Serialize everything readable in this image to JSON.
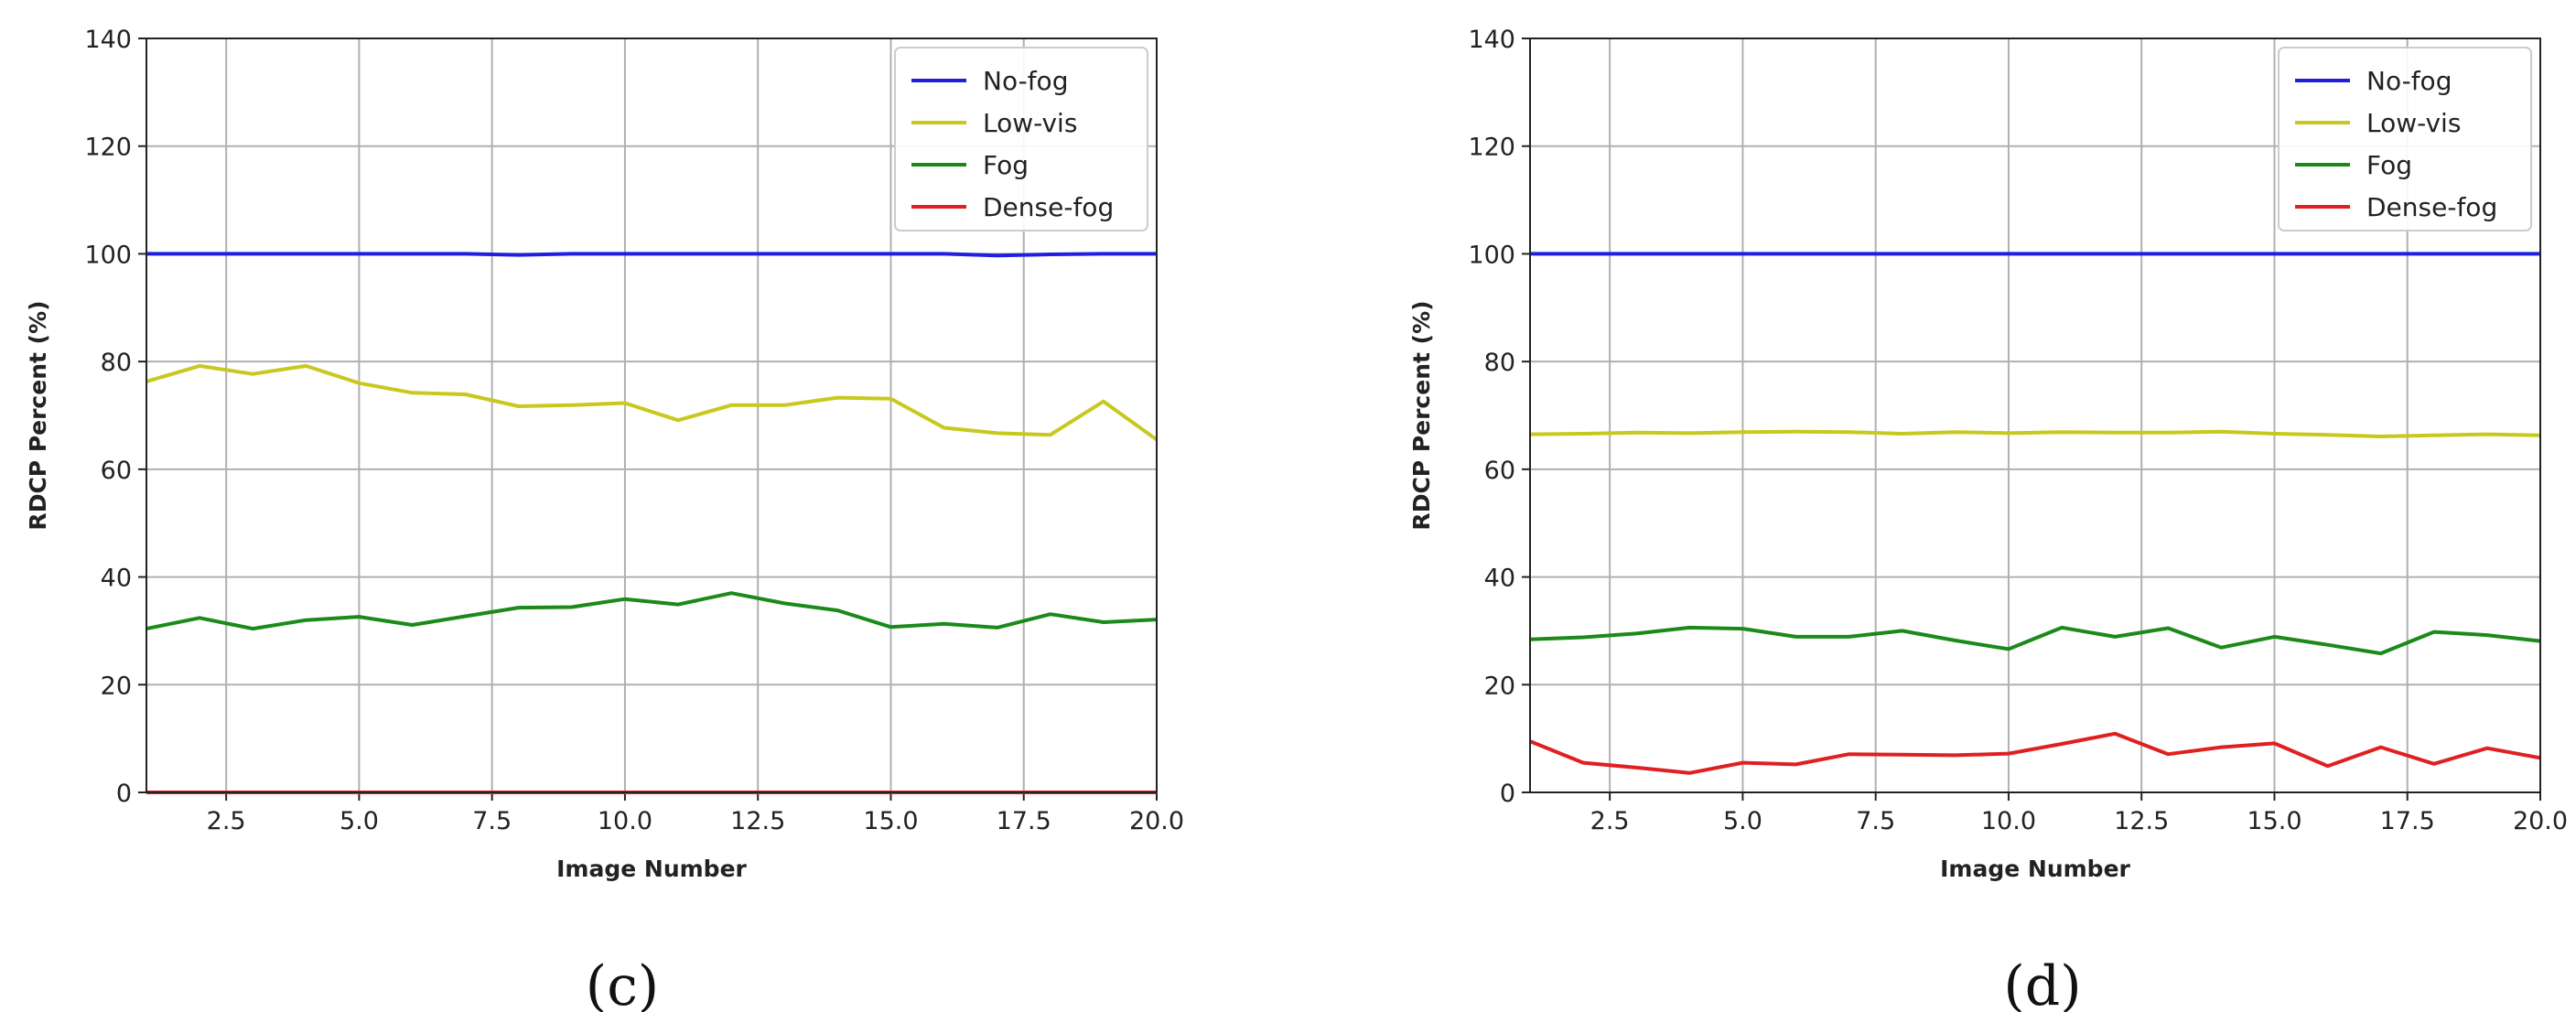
{
  "chart_data": [
    {
      "type": "line",
      "panel_label": "(c)",
      "xlabel": "Image Number",
      "ylabel": "RDCP Percent (%)",
      "xlim": [
        1,
        20
      ],
      "ylim": [
        0,
        140
      ],
      "x_ticks": [
        "2.5",
        "5.0",
        "7.5",
        "10.0",
        "12.5",
        "15.0",
        "17.5",
        "20.0"
      ],
      "y_ticks": [
        "0",
        "20",
        "40",
        "60",
        "80",
        "100",
        "120",
        "140"
      ],
      "grid": true,
      "legend_position": "top-right",
      "x": [
        1,
        2,
        3,
        4,
        5,
        6,
        7,
        8,
        9,
        10,
        11,
        12,
        13,
        14,
        15,
        16,
        17,
        18,
        19,
        20
      ],
      "series": [
        {
          "name": "No-fog",
          "color": "#1f1fe0",
          "values": [
            100,
            100,
            100,
            100,
            100,
            100,
            100,
            99.8,
            100,
            100,
            100,
            100,
            100,
            100,
            100,
            100,
            99.7,
            99.9,
            100,
            100
          ]
        },
        {
          "name": "Low-vis",
          "color": "#c8c81e",
          "values": [
            76.3,
            79.2,
            77.7,
            79.2,
            76.0,
            74.2,
            73.9,
            71.7,
            71.9,
            72.3,
            69.1,
            71.9,
            71.9,
            73.3,
            73.1,
            67.7,
            66.7,
            66.4,
            72.6,
            65.5
          ]
        },
        {
          "name": "Fog",
          "color": "#1a8a1a",
          "values": [
            30.4,
            32.4,
            30.4,
            32.0,
            32.6,
            31.1,
            32.7,
            34.3,
            34.4,
            35.9,
            34.9,
            37.0,
            35.1,
            33.8,
            30.7,
            31.3,
            30.6,
            33.1,
            31.6,
            32.1
          ]
        },
        {
          "name": "Dense-fog",
          "color": "#e02020",
          "values": [
            0,
            0,
            0,
            0,
            0,
            0,
            0,
            0,
            0,
            0,
            0,
            0,
            0,
            0,
            0,
            0,
            0,
            0,
            0,
            0
          ]
        }
      ]
    },
    {
      "type": "line",
      "panel_label": "(d)",
      "xlabel": "Image Number",
      "ylabel": "RDCP Percent (%)",
      "xlim": [
        1,
        20
      ],
      "ylim": [
        0,
        140
      ],
      "x_ticks": [
        "2.5",
        "5.0",
        "7.5",
        "10.0",
        "12.5",
        "15.0",
        "17.5",
        "20.0"
      ],
      "y_ticks": [
        "0",
        "20",
        "40",
        "60",
        "80",
        "100",
        "120",
        "140"
      ],
      "grid": true,
      "legend_position": "top-right",
      "x": [
        1,
        2,
        3,
        4,
        5,
        6,
        7,
        8,
        9,
        10,
        11,
        12,
        13,
        14,
        15,
        16,
        17,
        18,
        19,
        20
      ],
      "series": [
        {
          "name": "No-fog",
          "color": "#1f1fe0",
          "values": [
            100,
            100,
            100,
            100,
            100,
            100,
            100,
            100,
            100,
            100,
            100,
            100,
            100,
            100,
            100,
            100,
            100,
            100,
            100,
            100
          ]
        },
        {
          "name": "Low-vis",
          "color": "#c8c81e",
          "values": [
            66.5,
            66.6,
            66.8,
            66.7,
            66.9,
            67.0,
            66.9,
            66.6,
            66.9,
            66.7,
            66.9,
            66.8,
            66.8,
            67.0,
            66.6,
            66.4,
            66.1,
            66.3,
            66.5,
            66.3
          ]
        },
        {
          "name": "Fog",
          "color": "#1a8a1a",
          "values": [
            28.4,
            28.8,
            29.5,
            30.6,
            30.4,
            28.9,
            28.9,
            30.0,
            28.2,
            26.6,
            30.6,
            28.9,
            30.5,
            26.9,
            28.9,
            27.4,
            25.8,
            29.8,
            29.2,
            28.1
          ]
        },
        {
          "name": "Dense-fog",
          "color": "#e02020",
          "values": [
            9.5,
            5.5,
            4.6,
            3.6,
            5.5,
            5.2,
            7.1,
            7.0,
            6.9,
            7.2,
            9.0,
            10.9,
            7.1,
            8.4,
            9.1,
            4.9,
            8.4,
            5.3,
            8.2,
            6.4
          ]
        }
      ]
    }
  ]
}
